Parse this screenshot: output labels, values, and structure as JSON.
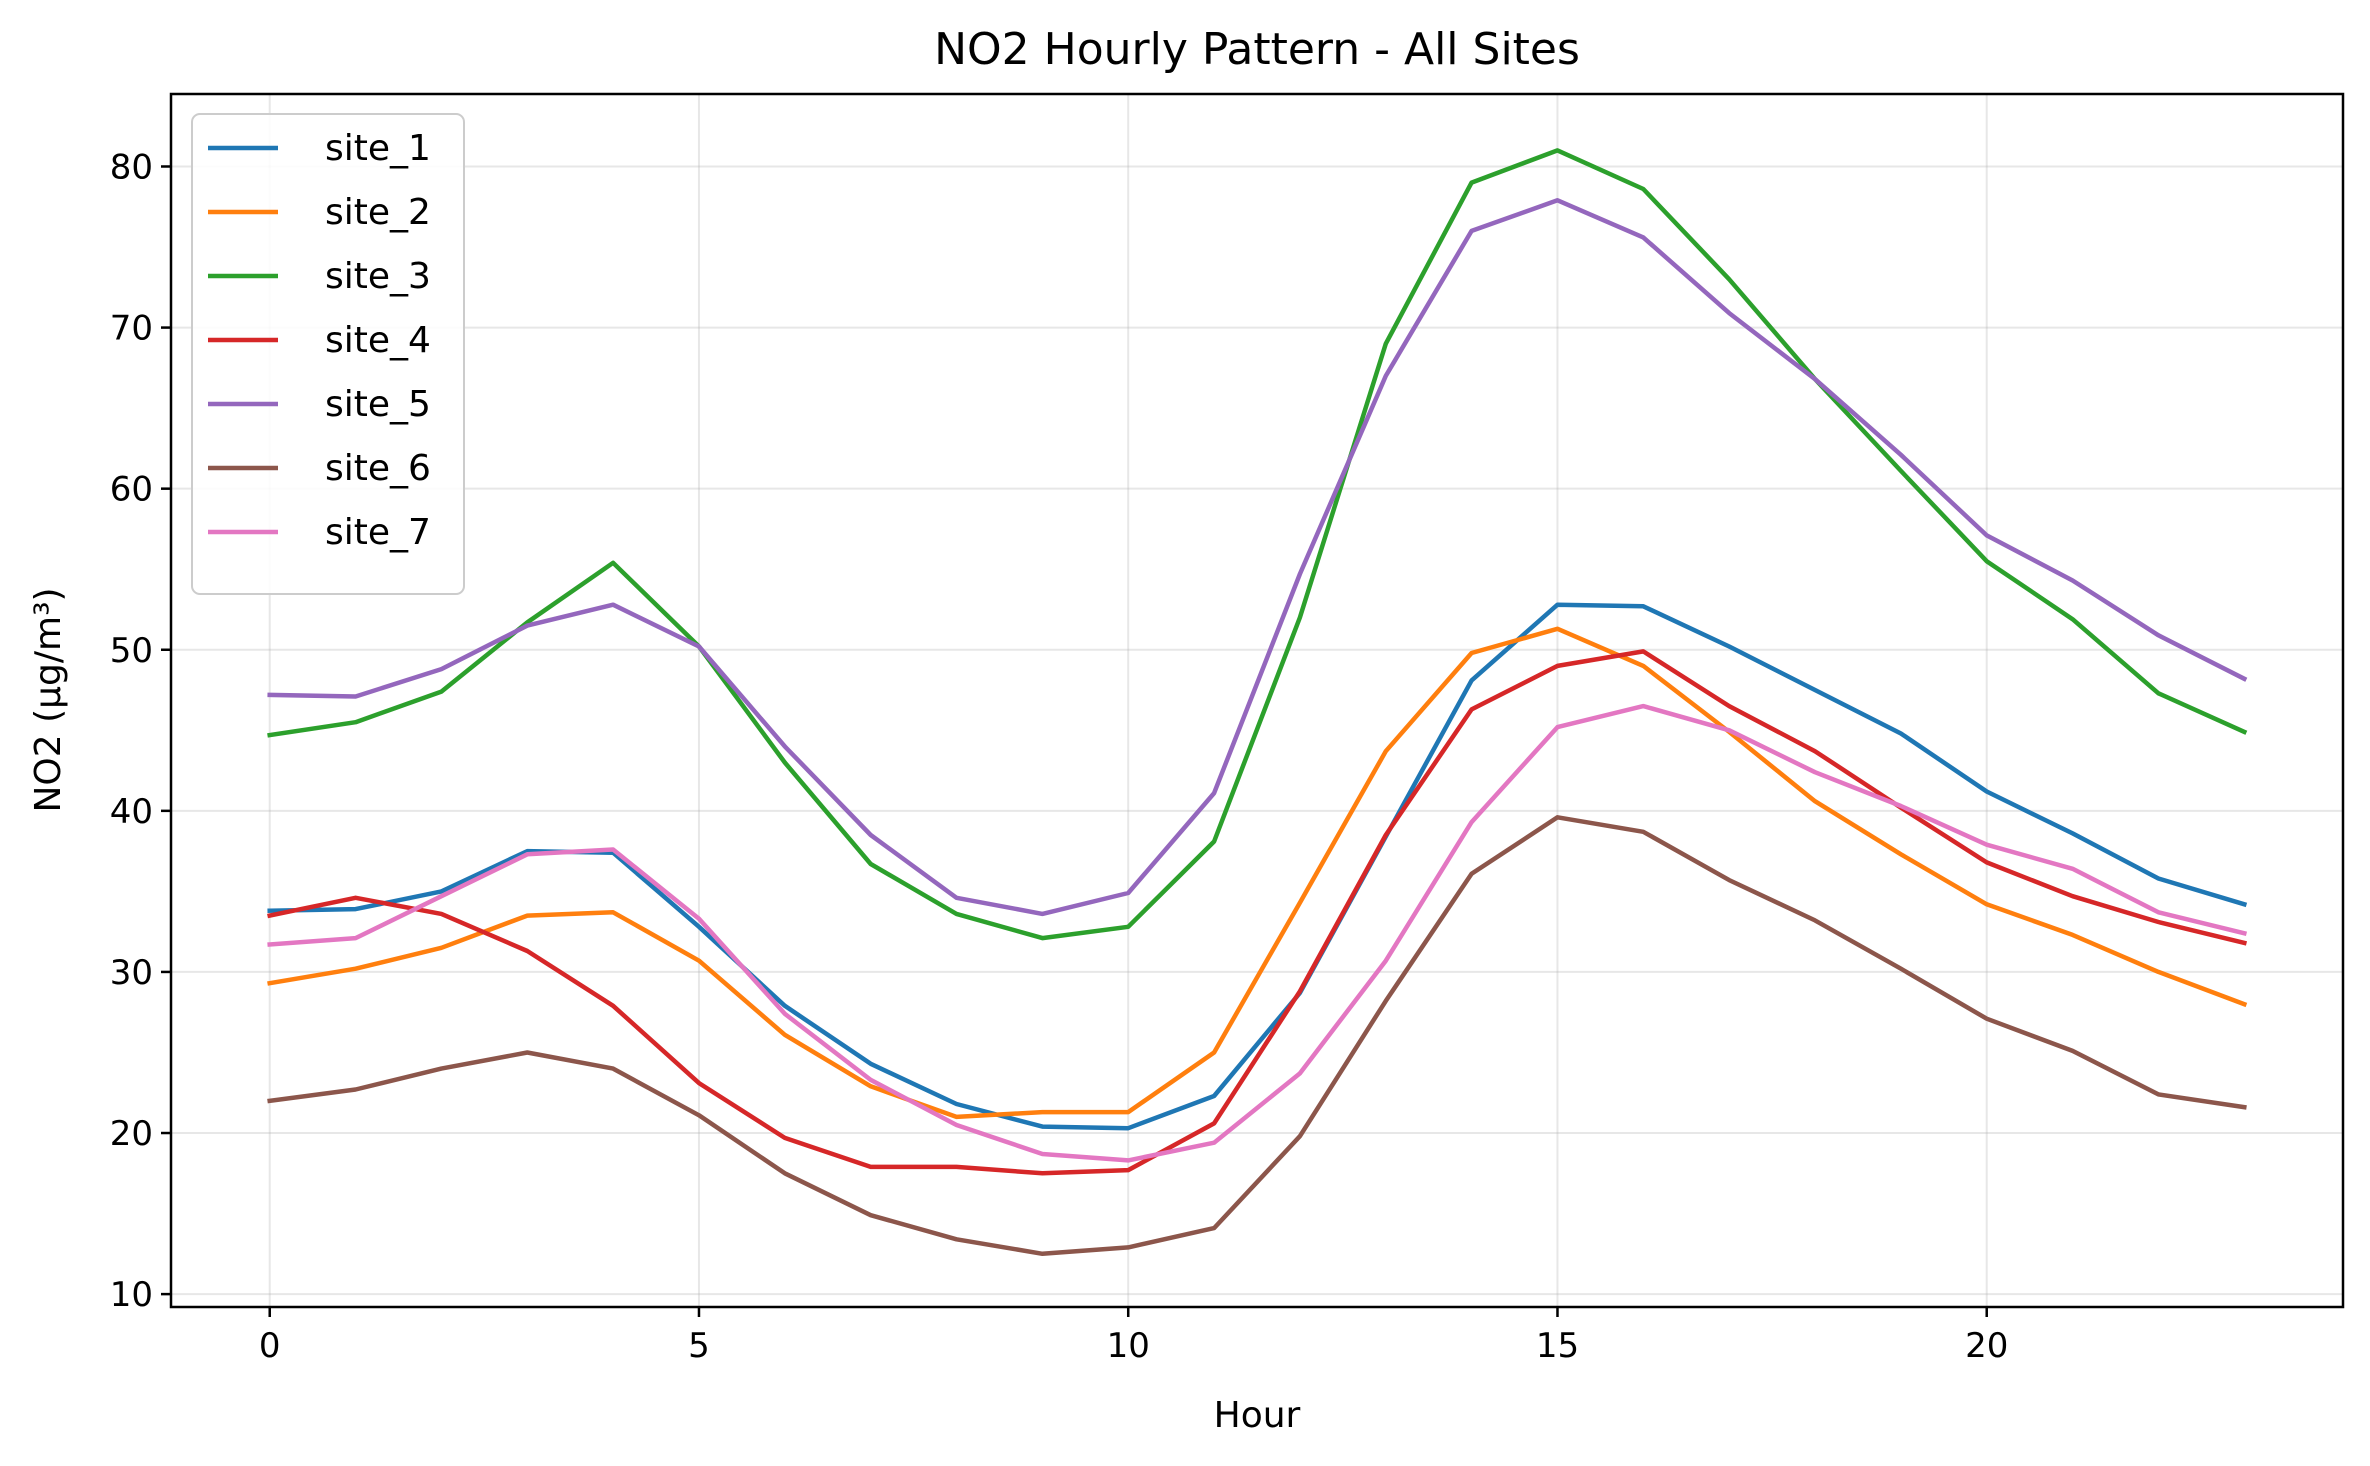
{
  "chart_data": {
    "type": "line",
    "title": "NO2 Hourly Pattern - All Sites",
    "xlabel": "Hour",
    "ylabel": "NO2 (μg/m³)",
    "xlim": [
      -1.15,
      24.15
    ],
    "ylim": [
      9.2,
      84.5
    ],
    "xticks": [
      0,
      5,
      10,
      15,
      20
    ],
    "yticks": [
      10,
      20,
      30,
      40,
      50,
      60,
      70,
      80
    ],
    "grid": true,
    "legend_position": "upper-left",
    "x": [
      0,
      1,
      2,
      3,
      4,
      5,
      6,
      7,
      8,
      9,
      10,
      11,
      12,
      13,
      14,
      15,
      16,
      17,
      18,
      19,
      20,
      21,
      22,
      23
    ],
    "series": [
      {
        "name": "site_1",
        "color": "#1f77b4",
        "values": [
          33.8,
          33.9,
          35.0,
          37.5,
          37.4,
          32.8,
          27.9,
          24.3,
          21.8,
          20.4,
          20.3,
          22.3,
          28.7,
          38.4,
          48.1,
          52.8,
          52.7,
          50.2,
          47.5,
          44.8,
          41.2,
          38.6,
          35.8,
          34.2
        ]
      },
      {
        "name": "site_2",
        "color": "#ff7f0e",
        "values": [
          29.3,
          30.2,
          31.5,
          33.5,
          33.7,
          30.7,
          26.1,
          22.9,
          21.0,
          21.3,
          21.3,
          25.0,
          34.3,
          43.7,
          49.8,
          51.3,
          49.0,
          44.9,
          40.6,
          37.3,
          34.2,
          32.3,
          30.0,
          28.0
        ]
      },
      {
        "name": "site_3",
        "color": "#2ca02c",
        "values": [
          44.7,
          45.5,
          47.4,
          51.7,
          55.4,
          50.2,
          43.0,
          36.7,
          33.6,
          32.1,
          32.8,
          38.1,
          52.0,
          69.0,
          79.0,
          81.0,
          78.6,
          73.0,
          66.8,
          61.1,
          55.5,
          51.9,
          47.3,
          44.9
        ]
      },
      {
        "name": "site_4",
        "color": "#d62728",
        "values": [
          33.5,
          34.6,
          33.6,
          31.3,
          27.9,
          23.1,
          19.7,
          17.9,
          17.9,
          17.5,
          17.7,
          20.6,
          28.8,
          38.5,
          46.3,
          49.0,
          49.9,
          46.5,
          43.7,
          40.2,
          36.8,
          34.7,
          33.1,
          31.8
        ]
      },
      {
        "name": "site_5",
        "color": "#9467bd",
        "values": [
          47.2,
          47.1,
          48.8,
          51.5,
          52.8,
          50.2,
          44.0,
          38.5,
          34.6,
          33.6,
          34.9,
          41.1,
          54.7,
          67.0,
          76.0,
          77.9,
          75.6,
          70.9,
          66.8,
          62.1,
          57.1,
          54.3,
          50.9,
          48.2
        ]
      },
      {
        "name": "site_6",
        "color": "#8c564b",
        "values": [
          22.0,
          22.7,
          24.0,
          25.0,
          24.0,
          21.1,
          17.5,
          14.9,
          13.4,
          12.5,
          12.9,
          14.1,
          19.8,
          28.2,
          36.1,
          39.6,
          38.7,
          35.7,
          33.2,
          30.2,
          27.1,
          25.1,
          22.4,
          21.6
        ]
      },
      {
        "name": "site_7",
        "color": "#e377c2",
        "values": [
          31.7,
          32.1,
          34.7,
          37.3,
          37.6,
          33.3,
          27.4,
          23.3,
          20.5,
          18.7,
          18.3,
          19.4,
          23.7,
          30.7,
          39.3,
          45.2,
          46.5,
          45.0,
          42.4,
          40.3,
          37.9,
          36.4,
          33.7,
          32.4
        ]
      }
    ]
  }
}
